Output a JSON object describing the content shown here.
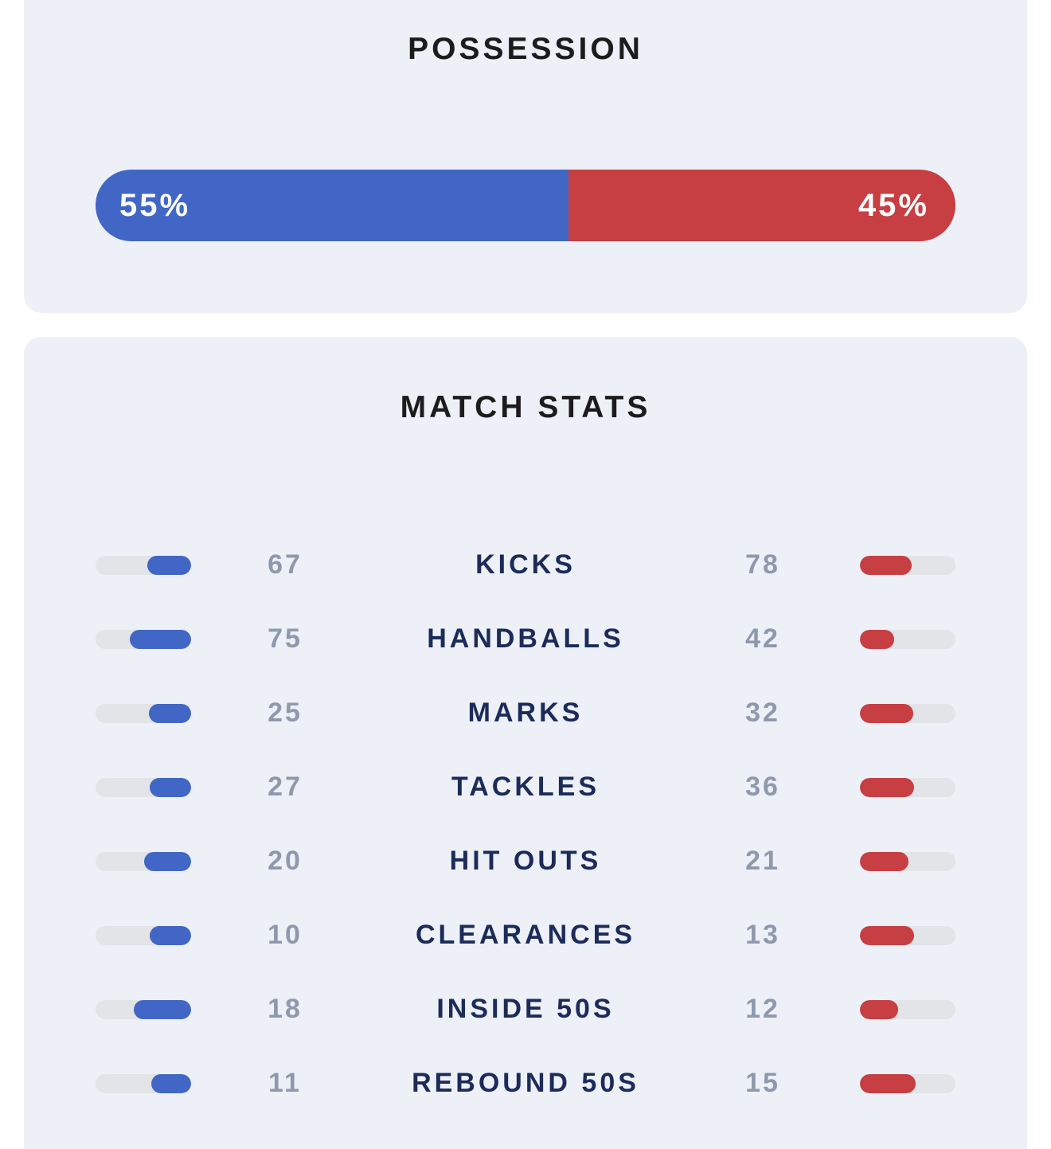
{
  "colors": {
    "home": "#4166c6",
    "away": "#c73e43",
    "card_bg": "#edf0f7",
    "track_bg": "#e3e4e7",
    "value_text": "#8f99ac",
    "label_text": "#1c2b59",
    "title_text": "#1c1c1c"
  },
  "possession": {
    "title": "POSSESSION",
    "home_percent": 55,
    "away_percent": 45,
    "home_label": "55%",
    "away_label": "45%"
  },
  "match_stats": {
    "title": "MATCH STATS",
    "rows": [
      {
        "label": "KICKS",
        "home": 67,
        "away": 78,
        "home_fill": 0.46,
        "away_fill": 0.54
      },
      {
        "label": "HANDBALLS",
        "home": 75,
        "away": 42,
        "home_fill": 0.64,
        "away_fill": 0.36
      },
      {
        "label": "MARKS",
        "home": 25,
        "away": 32,
        "home_fill": 0.44,
        "away_fill": 0.56
      },
      {
        "label": "TACKLES",
        "home": 27,
        "away": 36,
        "home_fill": 0.43,
        "away_fill": 0.57
      },
      {
        "label": "HIT OUTS",
        "home": 20,
        "away": 21,
        "home_fill": 0.49,
        "away_fill": 0.51
      },
      {
        "label": "CLEARANCES",
        "home": 10,
        "away": 13,
        "home_fill": 0.43,
        "away_fill": 0.57
      },
      {
        "label": "INSIDE 50S",
        "home": 18,
        "away": 12,
        "home_fill": 0.6,
        "away_fill": 0.4
      },
      {
        "label": "REBOUND 50S",
        "home": 11,
        "away": 15,
        "home_fill": 0.42,
        "away_fill": 0.58
      }
    ]
  }
}
